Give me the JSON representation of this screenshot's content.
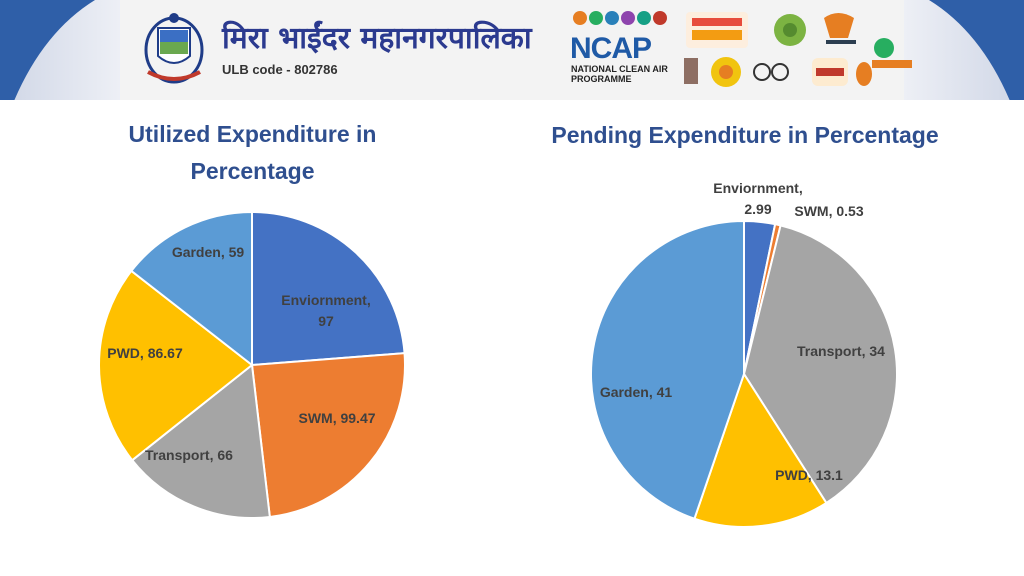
{
  "header": {
    "org_name": "मिरा भाईंदर महानगरपालिका",
    "ulb_code": "ULB code - 802786",
    "ncap_title": "NCAP",
    "ncap_subtitle": "NATIONAL CLEAN AIR PROGRAMME"
  },
  "chart_data": [
    {
      "type": "pie",
      "title": "Utilized Expenditure in Percentage",
      "categories": [
        "Enviornment",
        "SWM",
        "Transport",
        "PWD",
        "Garden"
      ],
      "values": [
        97,
        99.47,
        66,
        86.67,
        59
      ],
      "labels": [
        "Enviornment, 97",
        "SWM, 99.47",
        "Transport, 66",
        "PWD, 86.67",
        "Garden, 59"
      ],
      "colors": [
        "#4472c4",
        "#ed7d31",
        "#a5a5a5",
        "#ffc000",
        "#5b9bd5"
      ]
    },
    {
      "type": "pie",
      "title": "Pending Expenditure in Percentage",
      "categories": [
        "Enviornment",
        "SWM",
        "Transport",
        "PWD",
        "Garden"
      ],
      "values": [
        2.99,
        0.53,
        34,
        13.1,
        41
      ],
      "labels": [
        "Enviornment, 2.99",
        "SWM, 0.53",
        "Transport, 34",
        "PWD, 13.1",
        "Garden, 41"
      ],
      "colors": [
        "#4472c4",
        "#ed7d31",
        "#a5a5a5",
        "#ffc000",
        "#5b9bd5"
      ]
    }
  ]
}
